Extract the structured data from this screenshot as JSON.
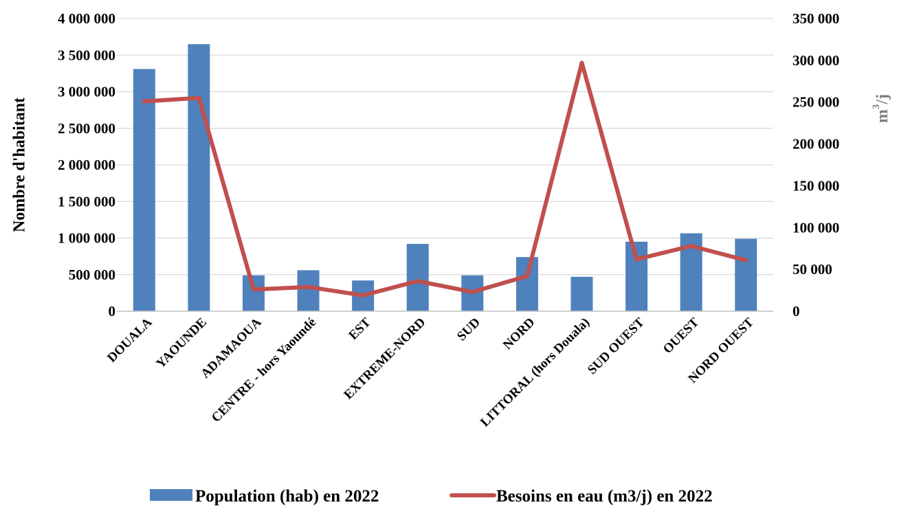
{
  "chart_data": {
    "type": "bar+line",
    "categories": [
      "DOUALA",
      "YAOUNDE",
      "ADAMAOUA",
      "CENTRE - hors Yaoundé",
      "EST",
      "EXTREME-NORD",
      "SUD",
      "NORD",
      "LITTORAL (hors Douala)",
      "SUD OUEST",
      "OUEST",
      "NORD OUEST"
    ],
    "series": [
      {
        "name": "Population (hab) en 2022",
        "type": "bar",
        "axis": "left",
        "color": "#4F81BD",
        "values": [
          3310000,
          3650000,
          490000,
          560000,
          420000,
          920000,
          490000,
          740000,
          470000,
          950000,
          1065000,
          990000
        ]
      },
      {
        "name": "Besoins en eau (m3/j) en 2022",
        "type": "line",
        "axis": "right",
        "color": "#C0504D",
        "values": [
          251000,
          255000,
          26000,
          29000,
          19000,
          36000,
          23000,
          42000,
          297000,
          62000,
          78000,
          61000
        ]
      }
    ],
    "y_left": {
      "label": "Nombre d'habitant",
      "range": [
        0,
        4000000
      ],
      "ticks": [
        "0",
        "500 000",
        "1 000 000",
        "1 500 000",
        "2 000 000",
        "2 500 000",
        "3 000 000",
        "3 500 000",
        "4 000 000"
      ]
    },
    "y_right": {
      "label_base": "m",
      "label_sup": "3",
      "label_tail": "/j",
      "range": [
        0,
        350000
      ],
      "ticks": [
        "0",
        "50 000",
        "100 000",
        "150 000",
        "200 000",
        "250 000",
        "300 000",
        "350 000"
      ]
    },
    "grid": true,
    "legend": "bottom"
  }
}
